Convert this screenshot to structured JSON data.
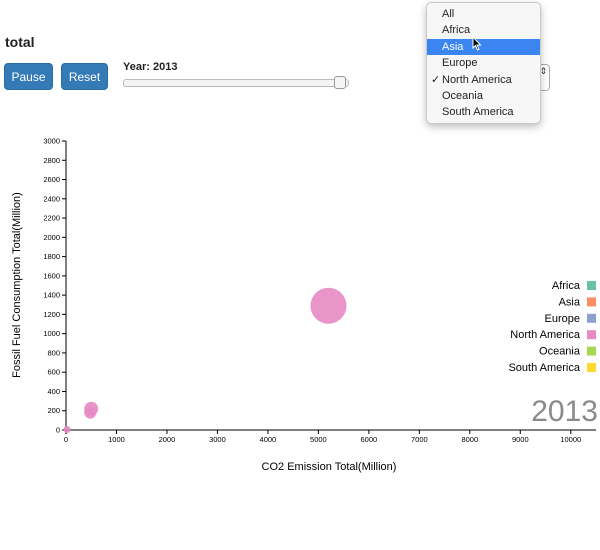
{
  "page_title": "total",
  "controls": {
    "pause_label": "Pause",
    "reset_label": "Reset",
    "year_label": "Year: 2013",
    "slider_fraction": 0.98
  },
  "dropdown": {
    "options": [
      "All",
      "Africa",
      "Asia",
      "Europe",
      "North America",
      "Oceania",
      "South America"
    ],
    "highlighted": "Asia",
    "checked": "North America",
    "arrow_glyph": "⇕"
  },
  "chart_data": {
    "type": "scatter",
    "xlabel": "CO2 Emission Total(Million)",
    "ylabel": "Fossil Fuel Consumption Total(Million)",
    "xlim": [
      0,
      10500
    ],
    "ylim": [
      0,
      3000
    ],
    "x_ticks": [
      0,
      1000,
      2000,
      3000,
      4000,
      5000,
      6000,
      7000,
      8000,
      9000,
      10000
    ],
    "y_ticks": [
      0,
      200,
      400,
      600,
      800,
      1000,
      1200,
      1400,
      1600,
      1800,
      2000,
      2200,
      2400,
      2600,
      2800,
      3000
    ],
    "year_watermark": "2013",
    "legend": [
      {
        "name": "Africa",
        "color": "#66c2a5"
      },
      {
        "name": "Asia",
        "color": "#fc8d62"
      },
      {
        "name": "Europe",
        "color": "#8da0cb"
      },
      {
        "name": "North America",
        "color": "#e78ac3"
      },
      {
        "name": "Oceania",
        "color": "#a6d854"
      },
      {
        "name": "South America",
        "color": "#ffd92f"
      }
    ],
    "legend_position": "right",
    "points": [
      {
        "x": 5200,
        "y": 1290,
        "size": 18,
        "region": "North America"
      },
      {
        "x": 500,
        "y": 220,
        "size": 7,
        "region": "North America"
      },
      {
        "x": 480,
        "y": 180,
        "size": 6,
        "region": "North America"
      },
      {
        "x": 20,
        "y": 5,
        "size": 3.5,
        "region": "North America"
      }
    ]
  }
}
